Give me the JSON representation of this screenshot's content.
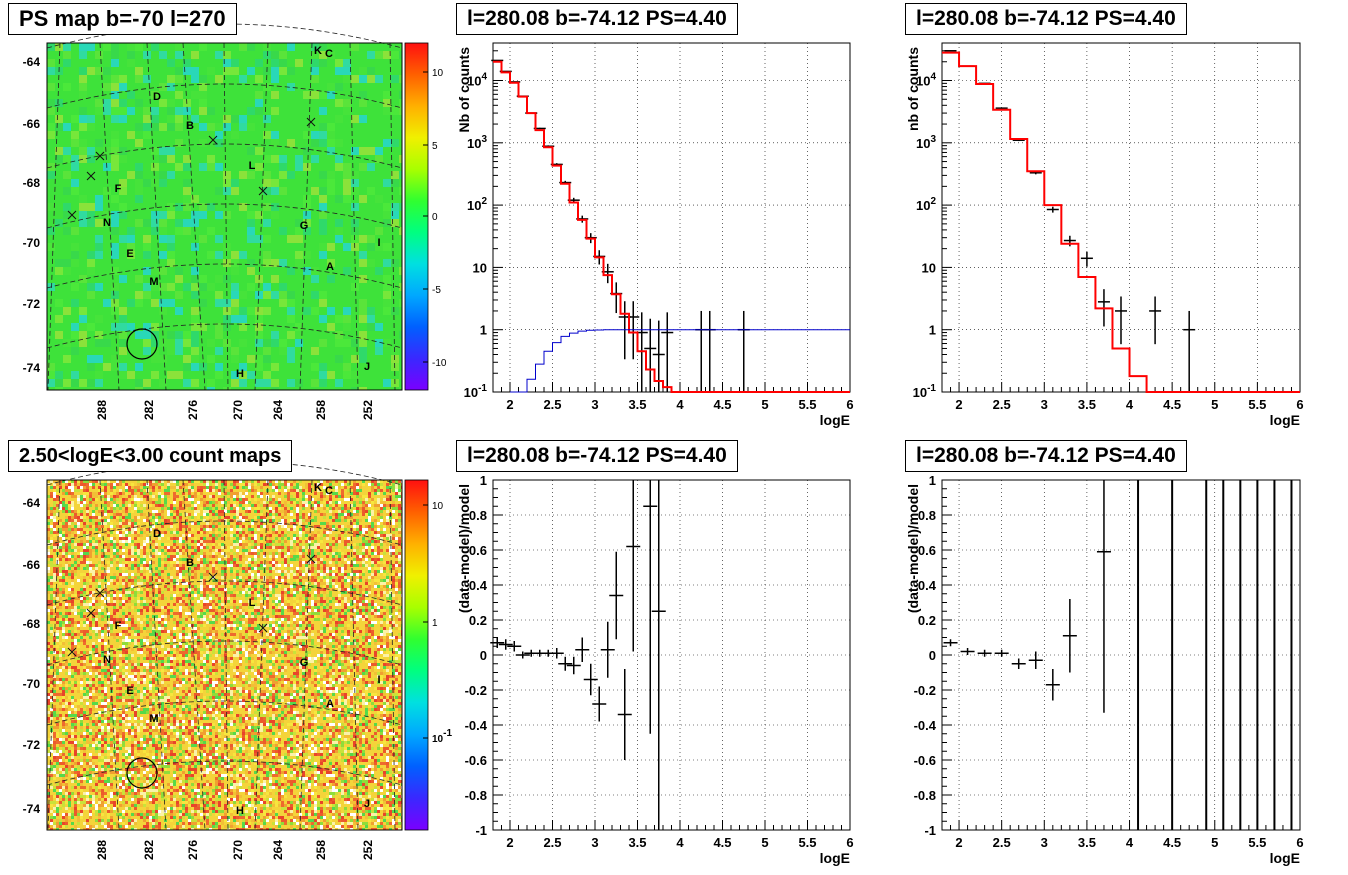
{
  "titles": {
    "map_top": "PS map b=-70 l=270",
    "map_bottom": "2.50<logE<3.00 count maps",
    "panel": "l=280.08 b=-74.12 PS=4.40"
  },
  "map": {
    "b_ticks": [
      "-64",
      "-66",
      "-68",
      "-70",
      "-72",
      "-74"
    ],
    "l_ticks": [
      "288",
      "282",
      "276",
      "270",
      "264",
      "258",
      "252"
    ],
    "source_labels": [
      "K",
      "C",
      "D",
      "B",
      "L",
      "F",
      "N",
      "G",
      "I",
      "E",
      "A",
      "M",
      "H",
      "J"
    ],
    "top_colorbar_labels": [
      "10",
      "5",
      "0",
      "-5",
      "-10"
    ],
    "bottom_colorbar_labels": [
      "10",
      "1",
      "10^-1"
    ]
  },
  "chart_data": [
    {
      "type": "line",
      "panel": "top-middle",
      "title": "l=280.08 b=-74.12 PS=4.40",
      "xlabel": "logE",
      "ylabel": "Nb of counts",
      "xlim": [
        1.8,
        6
      ],
      "ylim": [
        0.1,
        40000
      ],
      "yscale": "log",
      "grid": true,
      "x_ticks": [
        "2",
        "2.5",
        "3",
        "3.5",
        "4",
        "4.5",
        "5",
        "5.5",
        "6"
      ],
      "y_ticks": [
        "10^-1",
        "1",
        "10",
        "10^2",
        "10^3",
        "10^4"
      ],
      "series": [
        {
          "role": "data",
          "color": "#000000",
          "x": [
            1.85,
            1.95,
            2.05,
            2.15,
            2.25,
            2.35,
            2.45,
            2.55,
            2.65,
            2.75,
            2.85,
            2.95,
            3.05,
            3.15,
            3.25,
            3.35,
            3.45,
            3.55,
            3.65,
            3.75,
            3.85,
            4.25,
            4.35,
            4.75
          ],
          "y": [
            21000,
            14000,
            9500,
            5600,
            3000,
            1700,
            880,
            450,
            230,
            120,
            60,
            30,
            15,
            8.5,
            3.8,
            1.6,
            1.6,
            0.9,
            0.5,
            0.4,
            0.9,
            1,
            1,
            1
          ]
        },
        {
          "role": "model",
          "color": "#ff0000",
          "x": [
            1.8,
            1.9,
            2.0,
            2.1,
            2.2,
            2.3,
            2.4,
            2.5,
            2.6,
            2.7,
            2.8,
            2.9,
            3.0,
            3.1,
            3.2,
            3.3,
            3.4,
            3.5,
            3.6,
            3.7,
            3.8,
            3.9,
            4.0,
            4.1,
            6.0
          ],
          "y": [
            20000,
            13500,
            9200,
            5500,
            3000,
            1600,
            850,
            430,
            220,
            110,
            58,
            29,
            14.5,
            7.5,
            3.7,
            1.8,
            0.9,
            0.45,
            0.23,
            0.15,
            0.12,
            0.1,
            0.1,
            0.1,
            0.1
          ]
        },
        {
          "role": "acceptance",
          "color": "#0000cc",
          "x": [
            2.0,
            2.1,
            2.2,
            2.3,
            2.4,
            2.5,
            2.6,
            2.7,
            2.8,
            2.9,
            3.0,
            3.1,
            3.2,
            6.0
          ],
          "y": [
            0.1,
            0.1,
            0.16,
            0.28,
            0.45,
            0.62,
            0.78,
            0.88,
            0.95,
            0.98,
            0.99,
            1.0,
            1.0,
            1.0
          ]
        }
      ]
    },
    {
      "type": "line",
      "panel": "top-right",
      "title": "l=280.08 b=-74.12 PS=4.40",
      "xlabel": "logE",
      "ylabel": "nb of counts",
      "xlim": [
        1.8,
        6
      ],
      "ylim": [
        0.1,
        40000
      ],
      "yscale": "log",
      "grid": true,
      "x_ticks": [
        "2",
        "2.5",
        "3",
        "3.5",
        "4",
        "4.5",
        "5",
        "5.5",
        "6"
      ],
      "y_ticks": [
        "10^-1",
        "1",
        "10",
        "10^2",
        "10^3",
        "10^4"
      ],
      "series": [
        {
          "role": "data",
          "color": "#000000",
          "x": [
            1.9,
            2.1,
            2.3,
            2.5,
            2.7,
            2.9,
            3.1,
            3.3,
            3.5,
            3.7,
            3.9,
            4.3,
            4.7
          ],
          "y": [
            30000,
            17000,
            9000,
            3600,
            1100,
            330,
            85,
            27,
            14,
            2.8,
            2,
            2,
            1
          ]
        },
        {
          "role": "model",
          "color": "#ff0000",
          "x": [
            1.8,
            2.0,
            2.2,
            2.4,
            2.6,
            2.8,
            3.0,
            3.2,
            3.4,
            3.6,
            3.8,
            4.0,
            4.2,
            6.0
          ],
          "y": [
            28000,
            17000,
            8800,
            3400,
            1150,
            350,
            100,
            24,
            7,
            2.2,
            0.5,
            0.18,
            0.1,
            0.1
          ]
        }
      ]
    },
    {
      "type": "scatter",
      "panel": "bottom-middle",
      "title": "l=280.08 b=-74.12 PS=4.40",
      "xlabel": "logE",
      "ylabel": "(data-model)/model",
      "xlim": [
        1.8,
        6
      ],
      "ylim": [
        -1,
        1
      ],
      "grid": true,
      "x_ticks": [
        "2",
        "2.5",
        "3",
        "3.5",
        "4",
        "4.5",
        "5",
        "5.5",
        "6"
      ],
      "y_ticks": [
        "-1",
        "-0.8",
        "-0.6",
        "-0.4",
        "-0.2",
        "0",
        "0.2",
        "0.4",
        "0.6",
        "0.8",
        "1"
      ],
      "series": [
        {
          "role": "residual",
          "color": "#000000",
          "x": [
            1.85,
            1.95,
            2.05,
            2.15,
            2.25,
            2.35,
            2.45,
            2.55,
            2.65,
            2.75,
            2.85,
            2.95,
            3.05,
            3.15,
            3.25,
            3.35,
            3.45,
            3.65,
            3.75
          ],
          "y": [
            0.07,
            0.06,
            0.05,
            0.0,
            0.01,
            0.01,
            0.01,
            0.01,
            -0.05,
            -0.06,
            0.03,
            -0.14,
            -0.28,
            0.03,
            0.34,
            -0.34,
            0.62,
            0.85,
            0.25
          ],
          "yerr": [
            0.03,
            0.03,
            0.03,
            0.02,
            0.02,
            0.02,
            0.02,
            0.03,
            0.04,
            0.05,
            0.07,
            0.09,
            0.1,
            0.16,
            0.25,
            0.26,
            0.6,
            1.3,
            1.4
          ]
        }
      ]
    },
    {
      "type": "scatter",
      "panel": "bottom-right",
      "title": "l=280.08 b=-74.12 PS=4.40",
      "xlabel": "logE",
      "ylabel": "(data-model)/model",
      "xlim": [
        1.8,
        6
      ],
      "ylim": [
        -1,
        1
      ],
      "grid": true,
      "x_ticks": [
        "2",
        "2.5",
        "3",
        "3.5",
        "4",
        "4.5",
        "5",
        "5.5",
        "6"
      ],
      "y_ticks": [
        "-1",
        "-0.8",
        "-0.6",
        "-0.4",
        "-0.2",
        "0",
        "0.2",
        "0.4",
        "0.6",
        "0.8",
        "1"
      ],
      "series": [
        {
          "role": "residual",
          "color": "#000000",
          "x": [
            1.9,
            2.1,
            2.3,
            2.5,
            2.7,
            2.9,
            3.1,
            3.3,
            3.7
          ],
          "y": [
            0.07,
            0.02,
            0.01,
            0.01,
            -0.05,
            -0.03,
            -0.17,
            0.11,
            0.59
          ],
          "yerr": [
            0.02,
            0.02,
            0.02,
            0.02,
            0.03,
            0.05,
            0.09,
            0.21,
            0.92
          ]
        },
        {
          "role": "vertical-bars",
          "color": "#000000",
          "x": [
            4.1,
            4.5,
            4.9,
            5.1,
            5.3,
            5.5,
            5.7,
            5.9
          ]
        }
      ]
    }
  ]
}
